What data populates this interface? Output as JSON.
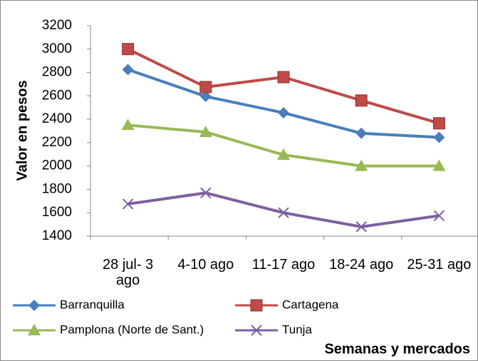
{
  "chart_data": {
    "type": "line",
    "y_label": "Valor en pesos",
    "x_label": "Semanas y mercados",
    "categories": [
      "28 jul- 3 ago",
      "4-10 ago",
      "11-17 ago",
      "18-24 ago",
      "25-31 ago"
    ],
    "series": [
      {
        "name": "Barranquilla",
        "color": "#4a7ebb",
        "marker": "diamond",
        "values": [
          2825,
          2595,
          2455,
          2280,
          2245
        ]
      },
      {
        "name": "Cartagena",
        "color": "#be4b48",
        "marker": "square",
        "values": [
          3000,
          2675,
          2760,
          2560,
          2365
        ]
      },
      {
        "name": "Pamplona (Norte de Sant.)",
        "color": "#98b954",
        "marker": "triangle",
        "values": [
          2350,
          2290,
          2095,
          2000,
          2000
        ]
      },
      {
        "name": "Tunja",
        "color": "#7d5fa0",
        "marker": "x",
        "values": [
          1675,
          1770,
          1600,
          1480,
          1575
        ]
      }
    ],
    "ylim": [
      1400,
      3200
    ],
    "yticks": [
      1400,
      1600,
      1800,
      2000,
      2200,
      2400,
      2600,
      2800,
      3000,
      3200
    ],
    "grid": false
  }
}
